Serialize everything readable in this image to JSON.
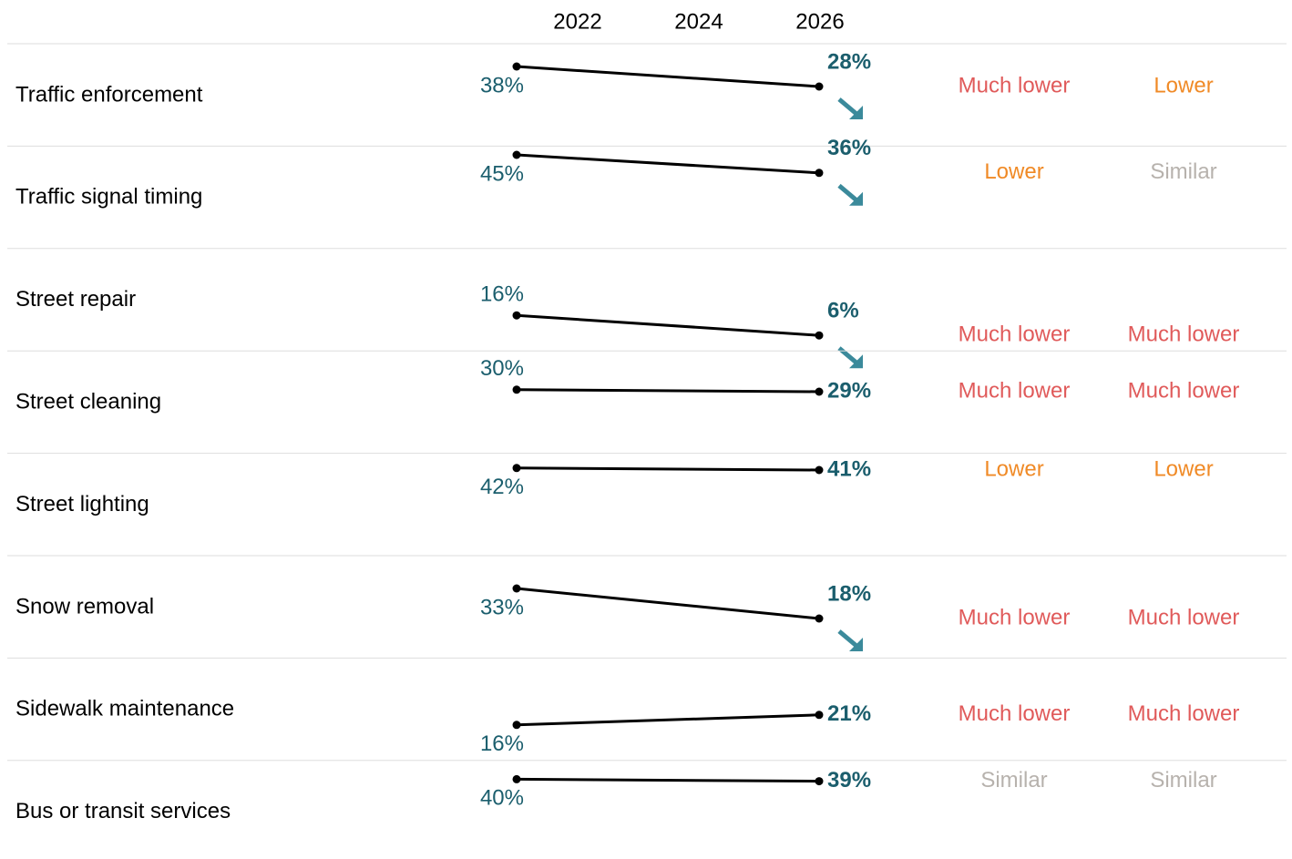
{
  "chart_data": {
    "type": "slope",
    "x": [
      2022,
      2026
    ],
    "xticks": [
      2022,
      2024,
      2026
    ],
    "ylim": [
      0,
      50
    ],
    "line_color": "#000000",
    "label_color": "#1b5e6d",
    "arrow_color": "#3b8a9b",
    "comparison_colors": {
      "Much lower": "#e05a5a",
      "Lower": "#f08a26",
      "Similar": "#b7b2ad"
    },
    "rows": [
      {
        "name": "Traffic enforcement",
        "values": [
          38,
          28
        ],
        "value_labels": [
          "38%",
          "28%"
        ],
        "arrow": "down",
        "comparisons": [
          "Much lower",
          "Lower"
        ]
      },
      {
        "name": "Traffic signal timing",
        "values": [
          45,
          36
        ],
        "value_labels": [
          "45%",
          "36%"
        ],
        "arrow": "down",
        "comparisons": [
          "Lower",
          "Similar"
        ]
      },
      {
        "name": "Street repair",
        "values": [
          16,
          6
        ],
        "value_labels": [
          "16%",
          "6%"
        ],
        "arrow": "down",
        "comparisons": [
          "Much lower",
          "Much lower"
        ]
      },
      {
        "name": "Street cleaning",
        "values": [
          30,
          29
        ],
        "value_labels": [
          "30%",
          "29%"
        ],
        "comparisons": [
          "Much lower",
          "Much lower"
        ]
      },
      {
        "name": "Street lighting",
        "values": [
          42,
          41
        ],
        "value_labels": [
          "42%",
          "41%"
        ],
        "comparisons": [
          "Lower",
          "Lower"
        ]
      },
      {
        "name": "Snow removal",
        "values": [
          33,
          18
        ],
        "value_labels": [
          "33%",
          "18%"
        ],
        "arrow": "down",
        "comparisons": [
          "Much lower",
          "Much lower"
        ]
      },
      {
        "name": "Sidewalk maintenance",
        "values": [
          16,
          21
        ],
        "value_labels": [
          "16%",
          "21%"
        ],
        "comparisons": [
          "Much lower",
          "Much lower"
        ]
      },
      {
        "name": "Bus or transit services",
        "values": [
          40,
          39
        ],
        "value_labels": [
          "40%",
          "39%"
        ],
        "comparisons": [
          "Similar",
          "Similar"
        ]
      }
    ]
  }
}
